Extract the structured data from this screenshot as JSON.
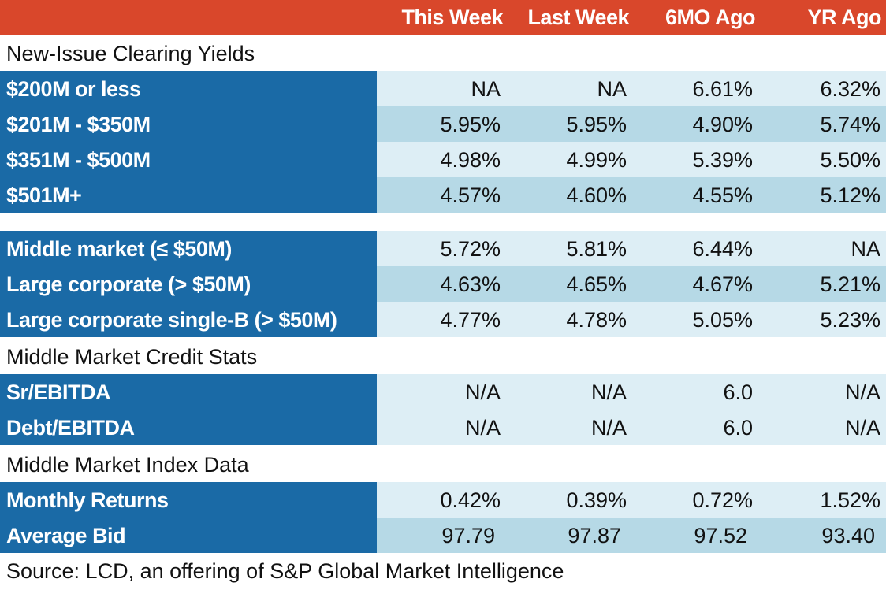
{
  "chart_data": {
    "type": "table",
    "columns": [
      "This Week",
      "Last Week",
      "6MO Ago",
      "YR Ago"
    ],
    "sections": [
      {
        "title": "New-Issue Clearing Yields",
        "rows": [
          {
            "label": "$200M or less",
            "values": [
              "NA",
              "NA",
              "6.61%",
              "6.32%"
            ]
          },
          {
            "label": "$201M - $350M",
            "values": [
              "5.95%",
              "5.95%",
              "4.90%",
              "5.74%"
            ]
          },
          {
            "label": "$351M - $500M",
            "values": [
              "4.98%",
              "4.99%",
              "5.39%",
              "5.50%"
            ]
          },
          {
            "label": "$501M+",
            "values": [
              "4.57%",
              "4.60%",
              "4.55%",
              "5.12%"
            ]
          }
        ]
      },
      {
        "title": "",
        "rows": [
          {
            "label": "Middle market (≤ $50M)",
            "values": [
              "5.72%",
              "5.81%",
              "6.44%",
              "NA"
            ]
          },
          {
            "label": "Large corporate (> $50M)",
            "values": [
              "4.63%",
              "4.65%",
              "4.67%",
              "5.21%"
            ]
          },
          {
            "label": "Large corporate single-B (> $50M)",
            "values": [
              "4.77%",
              "4.78%",
              "5.05%",
              "5.23%"
            ]
          }
        ]
      },
      {
        "title": "Middle Market Credit Stats",
        "rows": [
          {
            "label": "Sr/EBITDA",
            "values": [
              "N/A",
              "N/A",
              "6.0",
              "N/A"
            ]
          },
          {
            "label": "Debt/EBITDA",
            "values": [
              "N/A",
              "N/A",
              "6.0",
              "N/A"
            ]
          }
        ]
      },
      {
        "title": "Middle Market Index Data",
        "rows": [
          {
            "label": "Monthly Returns",
            "values": [
              "0.42%",
              "0.39%",
              "0.72%",
              "1.52%"
            ]
          },
          {
            "label": "Average Bid",
            "values": [
              "97.79",
              "97.87",
              "97.52",
              "93.40"
            ]
          }
        ]
      }
    ],
    "source": "Source: LCD, an offering of S&P Global Market Intelligence"
  },
  "colors": {
    "header_bg": "#d9472b",
    "label_bg": "#1a6aa6",
    "row_light": "#ddeef5",
    "row_dark": "#b6d9e6"
  }
}
